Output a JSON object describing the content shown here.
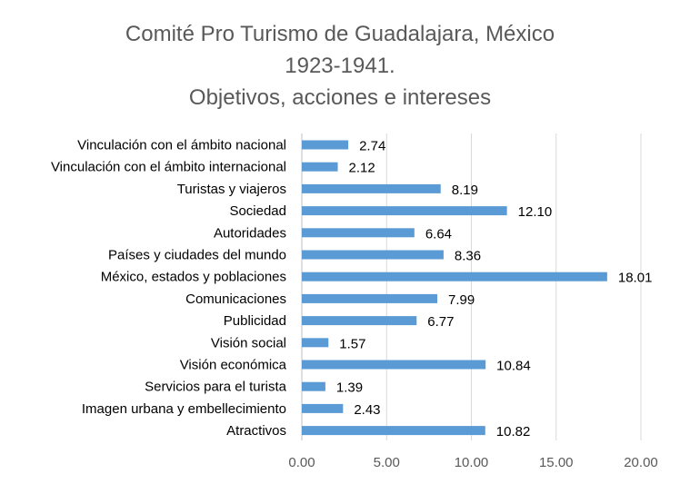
{
  "chart_data": {
    "type": "bar",
    "orientation": "horizontal",
    "title_lines": [
      "Comité Pro Turismo de Guadalajara, México",
      "1923-1941.",
      "Objetivos, acciones e intereses"
    ],
    "categories": [
      "Vinculación con el ámbito nacional",
      "Vinculación con el ámbito internacional",
      "Turistas y viajeros",
      "Sociedad",
      "Autoridades",
      "Países y ciudades del mundo",
      "México, estados y poblaciones",
      "Comunicaciones",
      "Publicidad",
      "Visión social",
      "Visión económica",
      "Servicios para el turista",
      "Imagen urbana y embellecimiento",
      "Atractivos"
    ],
    "values": [
      2.74,
      2.12,
      8.19,
      12.1,
      6.64,
      8.36,
      18.01,
      7.99,
      6.77,
      1.57,
      10.84,
      1.39,
      2.43,
      10.82
    ],
    "value_labels": [
      "2.74",
      "2.12",
      "8.19",
      "12.10",
      "6.64",
      "8.36",
      "18.01",
      "7.99",
      "6.77",
      "1.57",
      "10.84",
      "1.39",
      "2.43",
      "10.82"
    ],
    "xlim": [
      0,
      20
    ],
    "x_ticks": [
      0,
      5,
      10,
      15,
      20
    ],
    "x_tick_labels": [
      "0.00",
      "5.00",
      "10.00",
      "15.00",
      "20.00"
    ],
    "bar_color": "#5b9bd5",
    "grid": true,
    "legend": "none"
  }
}
